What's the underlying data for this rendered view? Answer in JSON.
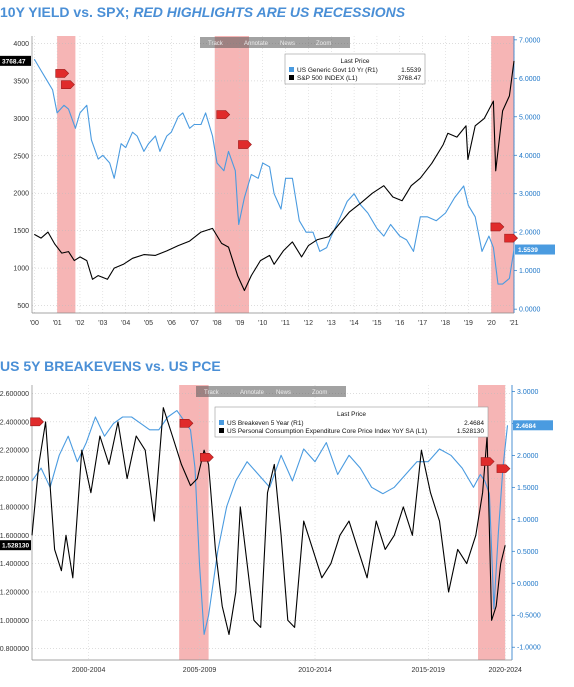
{
  "titles": {
    "top_main": "10Y YIELD vs. SPX; ",
    "top_italic": "RED HIGHLIGHTS ARE US RECESSIONS",
    "bottom": "US 5Y BREAKEVENS vs. US PCE"
  },
  "toolbar": {
    "items": [
      "Track",
      "Annotate",
      "News",
      "Zoom"
    ]
  },
  "colors": {
    "recession": "#f4a8a8",
    "series_primary": "#4a9be0",
    "series_secondary": "#000000",
    "title": "#4a8fd6",
    "toolbar": "#555555",
    "marker": "#e02b2b"
  },
  "chart_data": [
    {
      "type": "line",
      "xlabel": "",
      "ylabel": "",
      "x_ticks": [
        "'00",
        "'01",
        "'02",
        "'03",
        "'04",
        "'05",
        "'06",
        "'07",
        "'08",
        "'09",
        "'10",
        "'11",
        "'12",
        "'13",
        "'14",
        "'15",
        "'16",
        "'17",
        "'18",
        "'19",
        "'20",
        "'21"
      ],
      "xlim": [
        1999.9,
        2021.0
      ],
      "left_axis": {
        "ticks": [
          "500",
          "1000",
          "1500",
          "2000",
          "2500",
          "3000",
          "3500",
          "4000"
        ],
        "ylim": [
          400,
          4100
        ]
      },
      "right_axis": {
        "ticks": [
          "0.0000",
          "1.0000",
          "2.0000",
          "3.0000",
          "4.0000",
          "5.0000",
          "6.0000",
          "7.0000"
        ],
        "ylim": [
          -0.1,
          7.1
        ]
      },
      "recessions": [
        [
          2001.0,
          2001.8
        ],
        [
          2007.9,
          2009.4
        ],
        [
          2020.0,
          2021.0
        ]
      ],
      "legend": {
        "header": "Last Price",
        "entries": [
          {
            "name": "US Generic Govt 10 Yr  (R1)",
            "last": "1.5539"
          },
          {
            "name": "S&P 500 INDEX  (L1)",
            "last": "3768.47"
          }
        ]
      },
      "last_value_labels": {
        "left": "3768.47",
        "right": "1.5539"
      },
      "series": [
        {
          "name": "US Generic Govt 10 Yr",
          "axis": "right",
          "x": [
            2000.0,
            2000.3,
            2000.5,
            2000.8,
            2001.0,
            2001.3,
            2001.5,
            2001.8,
            2002.0,
            2002.3,
            2002.5,
            2002.8,
            2003.0,
            2003.3,
            2003.5,
            2003.8,
            2004.0,
            2004.3,
            2004.5,
            2004.8,
            2005.0,
            2005.3,
            2005.5,
            2005.8,
            2006.0,
            2006.3,
            2006.5,
            2006.8,
            2007.0,
            2007.3,
            2007.5,
            2007.8,
            2008.0,
            2008.3,
            2008.5,
            2008.8,
            2008.95,
            2009.2,
            2009.5,
            2009.8,
            2010.0,
            2010.3,
            2010.5,
            2010.8,
            2011.0,
            2011.3,
            2011.6,
            2011.9,
            2012.2,
            2012.5,
            2012.8,
            2013.0,
            2013.4,
            2013.7,
            2014.0,
            2014.3,
            2014.6,
            2015.0,
            2015.3,
            2015.6,
            2016.0,
            2016.3,
            2016.6,
            2016.9,
            2017.2,
            2017.6,
            2018.0,
            2018.4,
            2018.8,
            2019.0,
            2019.3,
            2019.6,
            2019.9,
            2020.1,
            2020.3,
            2020.5,
            2020.8,
            2021.0
          ],
          "y": [
            6.5,
            6.2,
            6.0,
            5.7,
            5.1,
            5.3,
            5.2,
            4.7,
            5.1,
            5.3,
            4.4,
            3.9,
            4.0,
            3.8,
            3.4,
            4.3,
            4.2,
            4.6,
            4.5,
            4.1,
            4.3,
            4.5,
            4.1,
            4.5,
            4.6,
            5.0,
            5.1,
            4.7,
            4.8,
            4.8,
            5.1,
            4.5,
            3.8,
            3.6,
            4.1,
            3.6,
            2.2,
            2.9,
            3.5,
            3.4,
            3.8,
            3.7,
            3.0,
            2.6,
            3.4,
            3.4,
            2.3,
            2.0,
            2.0,
            1.5,
            1.6,
            1.9,
            2.4,
            2.8,
            3.0,
            2.7,
            2.5,
            2.1,
            1.9,
            2.2,
            1.9,
            1.8,
            1.5,
            2.4,
            2.4,
            2.3,
            2.5,
            2.9,
            3.2,
            2.7,
            2.4,
            1.5,
            1.9,
            1.6,
            0.65,
            0.65,
            0.8,
            1.55
          ]
        },
        {
          "name": "S&P 500 INDEX",
          "axis": "left",
          "x": [
            2000.0,
            2000.3,
            2000.6,
            2000.9,
            2001.2,
            2001.5,
            2001.75,
            2002.0,
            2002.3,
            2002.55,
            2002.8,
            2003.2,
            2003.5,
            2003.9,
            2004.3,
            2004.8,
            2005.3,
            2005.8,
            2006.3,
            2006.8,
            2007.3,
            2007.8,
            2008.2,
            2008.5,
            2008.9,
            2009.2,
            2009.5,
            2009.9,
            2010.3,
            2010.5,
            2010.9,
            2011.3,
            2011.7,
            2012.0,
            2012.4,
            2012.9,
            2013.3,
            2013.8,
            2014.3,
            2014.8,
            2015.3,
            2015.7,
            2016.1,
            2016.5,
            2016.9,
            2017.4,
            2017.9,
            2018.1,
            2018.5,
            2018.9,
            2018.98,
            2019.3,
            2019.7,
            2020.1,
            2020.2,
            2020.5,
            2020.8,
            2021.0
          ],
          "y": [
            1450,
            1400,
            1480,
            1320,
            1200,
            1220,
            1100,
            1150,
            1100,
            850,
            900,
            850,
            1000,
            1050,
            1130,
            1180,
            1170,
            1230,
            1300,
            1360,
            1480,
            1530,
            1330,
            1280,
            900,
            700,
            900,
            1100,
            1170,
            1050,
            1230,
            1350,
            1150,
            1300,
            1380,
            1420,
            1570,
            1750,
            1870,
            2000,
            2100,
            1950,
            1900,
            2100,
            2200,
            2400,
            2650,
            2800,
            2750,
            2900,
            2450,
            2900,
            3000,
            3230,
            2300,
            3100,
            3300,
            3768
          ]
        }
      ]
    },
    {
      "type": "line",
      "xlabel": "",
      "ylabel": "",
      "x_ticks": [
        "2000-2004",
        "2005-2009",
        "2010-2014",
        "2015-2019",
        "2020-2024"
      ],
      "xlim": [
        2000.0,
        2021.2
      ],
      "left_axis": {
        "ticks": [
          "0.800000",
          "1.000000",
          "1.200000",
          "1.400000",
          "1.600000",
          "1.800000",
          "2.000000",
          "2.200000",
          "2.400000",
          "2.600000"
        ],
        "ylim": [
          0.72,
          2.66
        ]
      },
      "right_axis": {
        "ticks": [
          "-1.0000",
          "-0.5000",
          "0.0000",
          "0.5000",
          "1.0000",
          "1.5000",
          "2.0000",
          "2.5000",
          "3.0000"
        ],
        "ylim": [
          -1.2,
          3.1
        ]
      },
      "recessions": [
        [
          2006.5,
          2007.8
        ],
        [
          2019.7,
          2020.9
        ]
      ],
      "legend": {
        "header": "Last Price",
        "entries": [
          {
            "name": "US Breakeven 5 Year  (R1)",
            "last": "2.4684"
          },
          {
            "name": "US Personal Consumption Expenditure Core Price Index YoY SA  (L1)",
            "last": "1.528130"
          }
        ]
      },
      "last_value_labels": {
        "left": "1.528130",
        "right": "2.4684"
      },
      "series": [
        {
          "name": "US Breakeven 5 Year",
          "axis": "right",
          "x": [
            2000.0,
            2000.4,
            2000.8,
            2001.2,
            2001.6,
            2002.0,
            2002.4,
            2002.8,
            2003.2,
            2003.6,
            2004.0,
            2004.4,
            2004.8,
            2005.2,
            2005.6,
            2006.0,
            2006.4,
            2006.8,
            2007.0,
            2007.2,
            2007.4,
            2007.6,
            2007.8,
            2008.2,
            2008.6,
            2009.0,
            2009.5,
            2010.0,
            2010.5,
            2011.0,
            2011.5,
            2012.0,
            2012.5,
            2013.0,
            2013.5,
            2014.0,
            2014.5,
            2015.0,
            2015.5,
            2016.0,
            2016.5,
            2017.0,
            2017.5,
            2018.0,
            2018.5,
            2019.0,
            2019.5,
            2019.8,
            2020.0,
            2020.2,
            2020.4,
            2020.6,
            2020.8,
            2021.0
          ],
          "y": [
            1.6,
            1.8,
            1.5,
            2.0,
            2.3,
            1.9,
            2.2,
            2.6,
            2.3,
            2.5,
            2.6,
            2.6,
            2.5,
            2.4,
            2.4,
            2.6,
            2.7,
            2.5,
            2.4,
            1.8,
            0.3,
            -0.8,
            -0.5,
            0.5,
            1.2,
            1.6,
            1.9,
            1.7,
            1.5,
            2.0,
            1.6,
            2.1,
            1.9,
            2.2,
            1.7,
            2.0,
            1.8,
            1.5,
            1.4,
            1.5,
            1.7,
            1.9,
            1.9,
            2.1,
            2.0,
            1.8,
            1.5,
            1.7,
            1.6,
            1.4,
            -0.4,
            0.8,
            1.8,
            2.47
          ]
        },
        {
          "name": "US Personal Consumption Expenditure Core Price Index YoY SA",
          "axis": "left",
          "x": [
            2000.0,
            2000.3,
            2000.6,
            2001.0,
            2001.3,
            2001.5,
            2001.8,
            2002.2,
            2002.6,
            2003.0,
            2003.4,
            2003.8,
            2004.2,
            2004.6,
            2005.0,
            2005.4,
            2005.8,
            2006.2,
            2006.6,
            2007.0,
            2007.3,
            2007.6,
            2007.8,
            2008.1,
            2008.4,
            2008.7,
            2009.0,
            2009.2,
            2009.5,
            2009.8,
            2010.1,
            2010.4,
            2010.7,
            2011.0,
            2011.3,
            2011.6,
            2012.0,
            2012.4,
            2012.8,
            2013.2,
            2013.6,
            2014.0,
            2014.4,
            2014.8,
            2015.2,
            2015.6,
            2016.0,
            2016.4,
            2016.8,
            2017.2,
            2017.6,
            2018.0,
            2018.4,
            2018.8,
            2019.2,
            2019.6,
            2019.9,
            2020.1,
            2020.3,
            2020.5,
            2020.7,
            2020.9
          ],
          "y": [
            1.6,
            2.1,
            2.4,
            1.5,
            1.35,
            1.6,
            1.3,
            2.2,
            1.9,
            2.3,
            2.1,
            2.4,
            2.0,
            2.3,
            2.2,
            1.7,
            2.5,
            2.3,
            2.1,
            1.95,
            2.0,
            2.2,
            2.1,
            1.5,
            1.1,
            0.9,
            1.2,
            1.8,
            1.4,
            1.0,
            0.95,
            1.9,
            2.1,
            1.6,
            1.0,
            0.95,
            1.7,
            1.5,
            1.3,
            1.4,
            1.6,
            1.7,
            1.5,
            1.3,
            1.7,
            1.5,
            1.6,
            1.8,
            1.6,
            2.2,
            1.9,
            1.7,
            1.2,
            1.5,
            1.4,
            1.6,
            1.9,
            2.3,
            1.0,
            1.1,
            1.4,
            1.53
          ]
        }
      ]
    }
  ]
}
